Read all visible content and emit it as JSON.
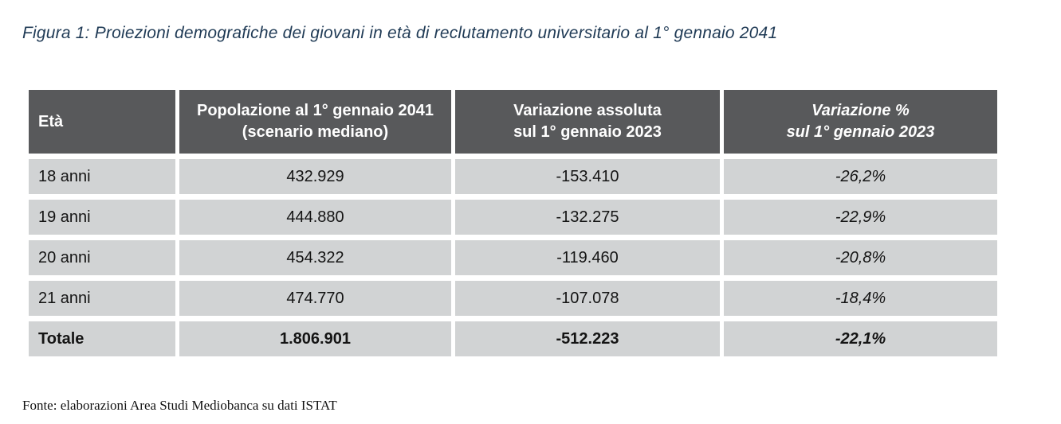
{
  "colors": {
    "header_bg": "#58595b",
    "header_text": "#ffffff",
    "row_bg": "#d1d3d4",
    "cell_text": "#141414",
    "title_color": "#1f3a55"
  },
  "figure_title": "Figura 1: Proiezioni demografiche dei giovani in età di reclutamento universitario al 1° gennaio 2041",
  "table": {
    "columns": [
      {
        "label": "Età"
      },
      {
        "line1": "Popolazione al 1° gennaio 2041",
        "line2": "(scenario mediano)"
      },
      {
        "line1": "Variazione assoluta",
        "line2": "sul 1° gennaio 2023"
      },
      {
        "line1": "Variazione %",
        "line2": "sul 1° gennaio 2023"
      }
    ],
    "rows": [
      {
        "eta": "18 anni",
        "popolazione": "432.929",
        "variazione_assoluta": "-153.410",
        "variazione_pct": "-26,2%"
      },
      {
        "eta": "19 anni",
        "popolazione": "444.880",
        "variazione_assoluta": "-132.275",
        "variazione_pct": "-22,9%"
      },
      {
        "eta": "20 anni",
        "popolazione": "454.322",
        "variazione_assoluta": "-119.460",
        "variazione_pct": "-20,8%"
      },
      {
        "eta": "21 anni",
        "popolazione": "474.770",
        "variazione_assoluta": "-107.078",
        "variazione_pct": "-18,4%"
      }
    ],
    "total": {
      "eta": "Totale",
      "popolazione": "1.806.901",
      "variazione_assoluta": "-512.223",
      "variazione_pct": "-22,1%"
    }
  },
  "source_note": "Fonte: elaborazioni Area Studi Mediobanca su dati ISTAT"
}
